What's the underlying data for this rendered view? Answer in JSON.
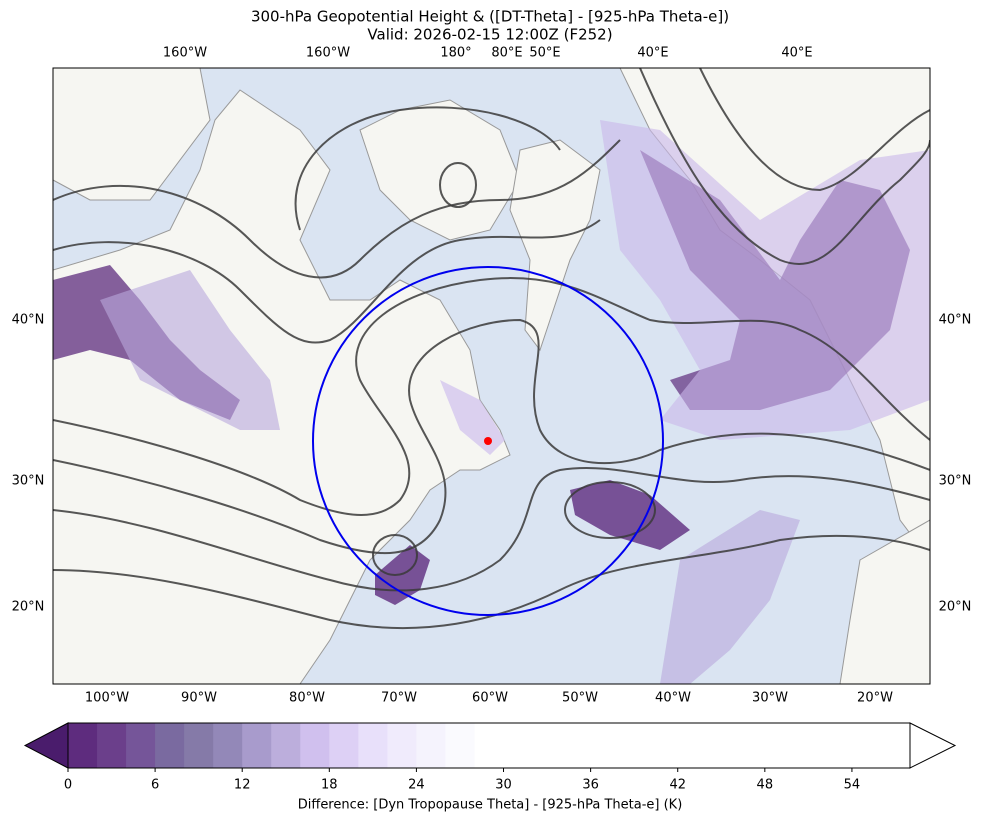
{
  "title": [
    "300-hPa Geopotential Height & ([DT-Theta] - [925-hPa Theta-e])",
    "Valid: 2026-02-15 12:00Z (F252)"
  ],
  "map": {
    "top_labels": [
      "160°W",
      "160°W",
      "180°",
      "80°E",
      "50°E",
      "40°E",
      "40°E"
    ],
    "bottom_labels": [
      "100°W",
      "90°W",
      "80°W",
      "70°W",
      "60°W",
      "50°W",
      "40°W",
      "30°W",
      "20°W"
    ],
    "left_labels": [
      "40°N",
      "30°N",
      "20°N"
    ],
    "right_labels": [
      "40°N",
      "30°N",
      "20°N"
    ]
  },
  "colorbar": {
    "label": "Difference: [Dyn Tropopause Theta] - [925-hPa Theta-e] (K)",
    "lim": [
      0,
      58
    ],
    "ticks": [
      0,
      6,
      12,
      18,
      24,
      30,
      36,
      42,
      48,
      54
    ],
    "under_color": "#4a1c6c",
    "over_color": "#ffffff",
    "colors": [
      "#5e2c7e",
      "#6b3f8b",
      "#755599",
      "#7a6aa0",
      "#857aa8",
      "#9388b8",
      "#a89bcc",
      "#bcaedc",
      "#d0c0ee",
      "#ddd0f5",
      "#e8e0fa",
      "#f0ebfc",
      "#f5f3fd",
      "#fafafe",
      "#ffffff",
      "#ffffff",
      "#ffffff",
      "#ffffff",
      "#ffffff",
      "#ffffff",
      "#ffffff",
      "#ffffff",
      "#ffffff",
      "#ffffff",
      "#ffffff",
      "#ffffff",
      "#ffffff",
      "#ffffff",
      "#ffffff"
    ]
  }
}
